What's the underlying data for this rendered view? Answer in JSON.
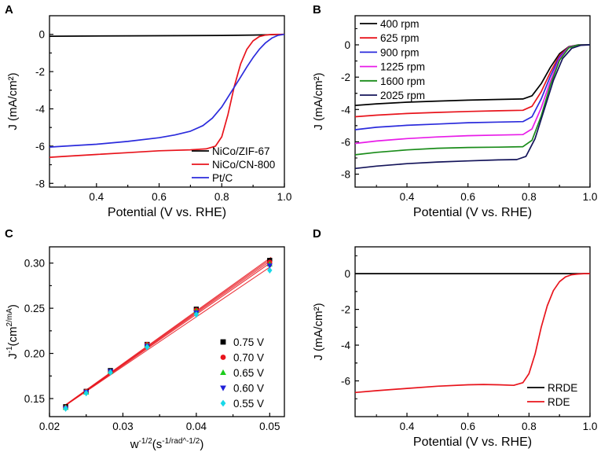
{
  "colors": {
    "axis": "#000000",
    "background": "#ffffff"
  },
  "chart_data": [
    {
      "panel": "A",
      "type": "line",
      "xlabel": "Potential (V vs. RHE)",
      "ylabel": "J (mA/cm²)",
      "xlim": [
        0.25,
        1.0
      ],
      "ylim": [
        -8.2,
        1.0
      ],
      "xticks": [
        0.4,
        0.6,
        0.8,
        1.0
      ],
      "xtick_labels": [
        "0.4",
        "0.6",
        "0.8",
        "1.0"
      ],
      "yticks": [
        0,
        -2,
        -4,
        -6,
        -8
      ],
      "ytick_labels": [
        "0",
        "-2",
        "-4",
        "-6",
        "-8"
      ],
      "legend": {
        "position": "bottom-right"
      },
      "series": [
        {
          "name": "NiCo/ZIF-67",
          "color": "#000000",
          "x": [
            0.25,
            0.5,
            0.8,
            0.9,
            0.95,
            1.0
          ],
          "y": [
            -0.1,
            -0.08,
            -0.06,
            -0.04,
            -0.02,
            0.0
          ]
        },
        {
          "name": "NiCo/CN-800",
          "color": "#e8141c",
          "x": [
            0.25,
            0.3,
            0.4,
            0.5,
            0.6,
            0.7,
            0.75,
            0.78,
            0.8,
            0.82,
            0.84,
            0.86,
            0.88,
            0.9,
            0.92,
            0.94,
            0.96,
            0.98,
            1.0
          ],
          "y": [
            -6.6,
            -6.55,
            -6.45,
            -6.35,
            -6.25,
            -6.2,
            -6.15,
            -6.0,
            -5.5,
            -4.3,
            -2.8,
            -1.6,
            -0.8,
            -0.35,
            -0.12,
            -0.04,
            -0.01,
            0.0,
            0.0
          ]
        },
        {
          "name": "Pt/C",
          "color": "#2b2bdc",
          "x": [
            0.25,
            0.3,
            0.4,
            0.5,
            0.6,
            0.65,
            0.7,
            0.74,
            0.77,
            0.8,
            0.83,
            0.86,
            0.88,
            0.9,
            0.92,
            0.94,
            0.96,
            0.98,
            1.0
          ],
          "y": [
            -6.05,
            -6.0,
            -5.9,
            -5.75,
            -5.55,
            -5.4,
            -5.2,
            -4.9,
            -4.5,
            -3.9,
            -3.1,
            -2.3,
            -1.75,
            -1.25,
            -0.8,
            -0.45,
            -0.2,
            -0.05,
            0.0
          ]
        }
      ]
    },
    {
      "panel": "B",
      "type": "line",
      "xlabel": "Potential (V vs. RHE)",
      "ylabel": "J (mA/cm²)",
      "xlim": [
        0.23,
        1.0
      ],
      "ylim": [
        -8.8,
        1.8
      ],
      "xticks": [
        0.4,
        0.6,
        0.8,
        1.0
      ],
      "xtick_labels": [
        "0.4",
        "0.6",
        "0.8",
        "1.0"
      ],
      "yticks": [
        0,
        -2,
        -4,
        -6,
        -8
      ],
      "ytick_labels": [
        "0",
        "-2",
        "-4",
        "-6",
        "-8"
      ],
      "legend": {
        "position": "top-left"
      },
      "series": [
        {
          "name": "400 rpm",
          "color": "#000000",
          "x": [
            0.23,
            0.3,
            0.4,
            0.5,
            0.6,
            0.7,
            0.78,
            0.81,
            0.84,
            0.87,
            0.9,
            0.93,
            0.96,
            1.0
          ],
          "y": [
            -3.75,
            -3.65,
            -3.55,
            -3.48,
            -3.42,
            -3.38,
            -3.35,
            -3.15,
            -2.4,
            -1.4,
            -0.55,
            -0.12,
            -0.01,
            0.0
          ]
        },
        {
          "name": "625 rpm",
          "color": "#e8141c",
          "x": [
            0.23,
            0.3,
            0.4,
            0.5,
            0.6,
            0.7,
            0.78,
            0.81,
            0.84,
            0.87,
            0.9,
            0.93,
            0.96,
            1.0
          ],
          "y": [
            -4.45,
            -4.35,
            -4.25,
            -4.18,
            -4.12,
            -4.08,
            -4.05,
            -3.8,
            -2.9,
            -1.7,
            -0.65,
            -0.14,
            -0.01,
            0.0
          ]
        },
        {
          "name": "900 rpm",
          "color": "#2b2bdc",
          "x": [
            0.23,
            0.3,
            0.4,
            0.5,
            0.6,
            0.7,
            0.78,
            0.81,
            0.84,
            0.87,
            0.9,
            0.93,
            0.96,
            1.0
          ],
          "y": [
            -5.25,
            -5.1,
            -4.98,
            -4.9,
            -4.82,
            -4.78,
            -4.75,
            -4.45,
            -3.35,
            -1.95,
            -0.75,
            -0.16,
            -0.01,
            0.0
          ]
        },
        {
          "name": "1225 rpm",
          "color": "#e81ce8",
          "x": [
            0.23,
            0.3,
            0.4,
            0.5,
            0.6,
            0.7,
            0.78,
            0.81,
            0.84,
            0.87,
            0.9,
            0.93,
            0.96,
            1.0
          ],
          "y": [
            -6.1,
            -5.95,
            -5.8,
            -5.7,
            -5.62,
            -5.58,
            -5.55,
            -5.2,
            -3.9,
            -2.25,
            -0.85,
            -0.18,
            -0.01,
            0.0
          ]
        },
        {
          "name": "1600 rpm",
          "color": "#1a8c1a",
          "x": [
            0.23,
            0.3,
            0.4,
            0.5,
            0.6,
            0.7,
            0.78,
            0.81,
            0.84,
            0.87,
            0.9,
            0.93,
            0.96,
            1.0
          ],
          "y": [
            -6.8,
            -6.65,
            -6.5,
            -6.4,
            -6.35,
            -6.33,
            -6.3,
            -5.9,
            -4.4,
            -2.5,
            -0.95,
            -0.2,
            -0.01,
            0.0
          ]
        },
        {
          "name": "2025 rpm",
          "color": "#14145a",
          "x": [
            0.23,
            0.3,
            0.4,
            0.5,
            0.6,
            0.7,
            0.76,
            0.79,
            0.82,
            0.85,
            0.88,
            0.91,
            0.94,
            0.97,
            1.0
          ],
          "y": [
            -7.65,
            -7.5,
            -7.35,
            -7.25,
            -7.18,
            -7.12,
            -7.1,
            -6.9,
            -5.8,
            -4.0,
            -2.2,
            -0.85,
            -0.22,
            -0.03,
            0.0
          ]
        }
      ]
    },
    {
      "panel": "C",
      "type": "scatter",
      "xlabel": "w^-1/2(s^-1/rad^-1/2)",
      "ylabel": "J^-1(cm^2/mA)",
      "xlim": [
        0.02,
        0.052
      ],
      "ylim": [
        0.13,
        0.318
      ],
      "xticks": [
        0.02,
        0.03,
        0.04,
        0.05
      ],
      "xtick_labels": [
        "0.02",
        "0.03",
        "0.04",
        "0.05"
      ],
      "yticks": [
        0.15,
        0.2,
        0.25,
        0.3
      ],
      "ytick_labels": [
        "0.15",
        "0.20",
        "0.25",
        "0.30"
      ],
      "legend": {
        "position": "bottom-right"
      },
      "x": [
        0.0222,
        0.025,
        0.0283,
        0.0333,
        0.04,
        0.05
      ],
      "series": [
        {
          "name": "0.75 V",
          "color": "#000000",
          "marker": "square",
          "values": [
            0.141,
            0.158,
            0.181,
            0.21,
            0.249,
            0.303
          ]
        },
        {
          "name": "0.70 V",
          "color": "#e8141c",
          "marker": "circle",
          "values": [
            0.14,
            0.158,
            0.18,
            0.21,
            0.248,
            0.301
          ]
        },
        {
          "name": "0.65 V",
          "color": "#1ccc1c",
          "marker": "triangle-up",
          "values": [
            0.14,
            0.157,
            0.18,
            0.209,
            0.247,
            0.299
          ]
        },
        {
          "name": "0.60 V",
          "color": "#2020d8",
          "marker": "triangle-down",
          "values": [
            0.139,
            0.157,
            0.18,
            0.208,
            0.245,
            0.297
          ]
        },
        {
          "name": "0.55 V",
          "color": "#18d8e8",
          "marker": "diamond",
          "values": [
            0.139,
            0.156,
            0.179,
            0.207,
            0.243,
            0.292
          ]
        }
      ]
    },
    {
      "panel": "D",
      "type": "line",
      "xlabel": "Potential (V vs. RHE)",
      "ylabel": "J (mA/cm²)",
      "xlim": [
        0.23,
        1.0
      ],
      "ylim": [
        -8.0,
        1.5
      ],
      "xticks": [
        0.4,
        0.6,
        0.8,
        1.0
      ],
      "xtick_labels": [
        "0.4",
        "0.6",
        "0.8",
        "1.0"
      ],
      "yticks": [
        0,
        -2,
        -4,
        -6
      ],
      "ytick_labels": [
        "0",
        "-2",
        "-4",
        "-6"
      ],
      "legend": {
        "position": "bottom-right"
      },
      "series": [
        {
          "name": "RRDE",
          "color": "#000000",
          "x": [
            0.23,
            0.5,
            0.8,
            1.0
          ],
          "y": [
            0.0,
            0.0,
            0.0,
            0.0
          ]
        },
        {
          "name": "RDE",
          "color": "#e8141c",
          "x": [
            0.23,
            0.3,
            0.4,
            0.5,
            0.6,
            0.65,
            0.7,
            0.75,
            0.78,
            0.8,
            0.82,
            0.84,
            0.86,
            0.88,
            0.9,
            0.92,
            0.94,
            0.96,
            0.98,
            1.0
          ],
          "y": [
            -6.65,
            -6.55,
            -6.42,
            -6.3,
            -6.22,
            -6.2,
            -6.22,
            -6.25,
            -6.1,
            -5.6,
            -4.5,
            -3.0,
            -1.8,
            -0.95,
            -0.45,
            -0.18,
            -0.06,
            -0.02,
            0.0,
            0.0
          ]
        }
      ]
    }
  ]
}
